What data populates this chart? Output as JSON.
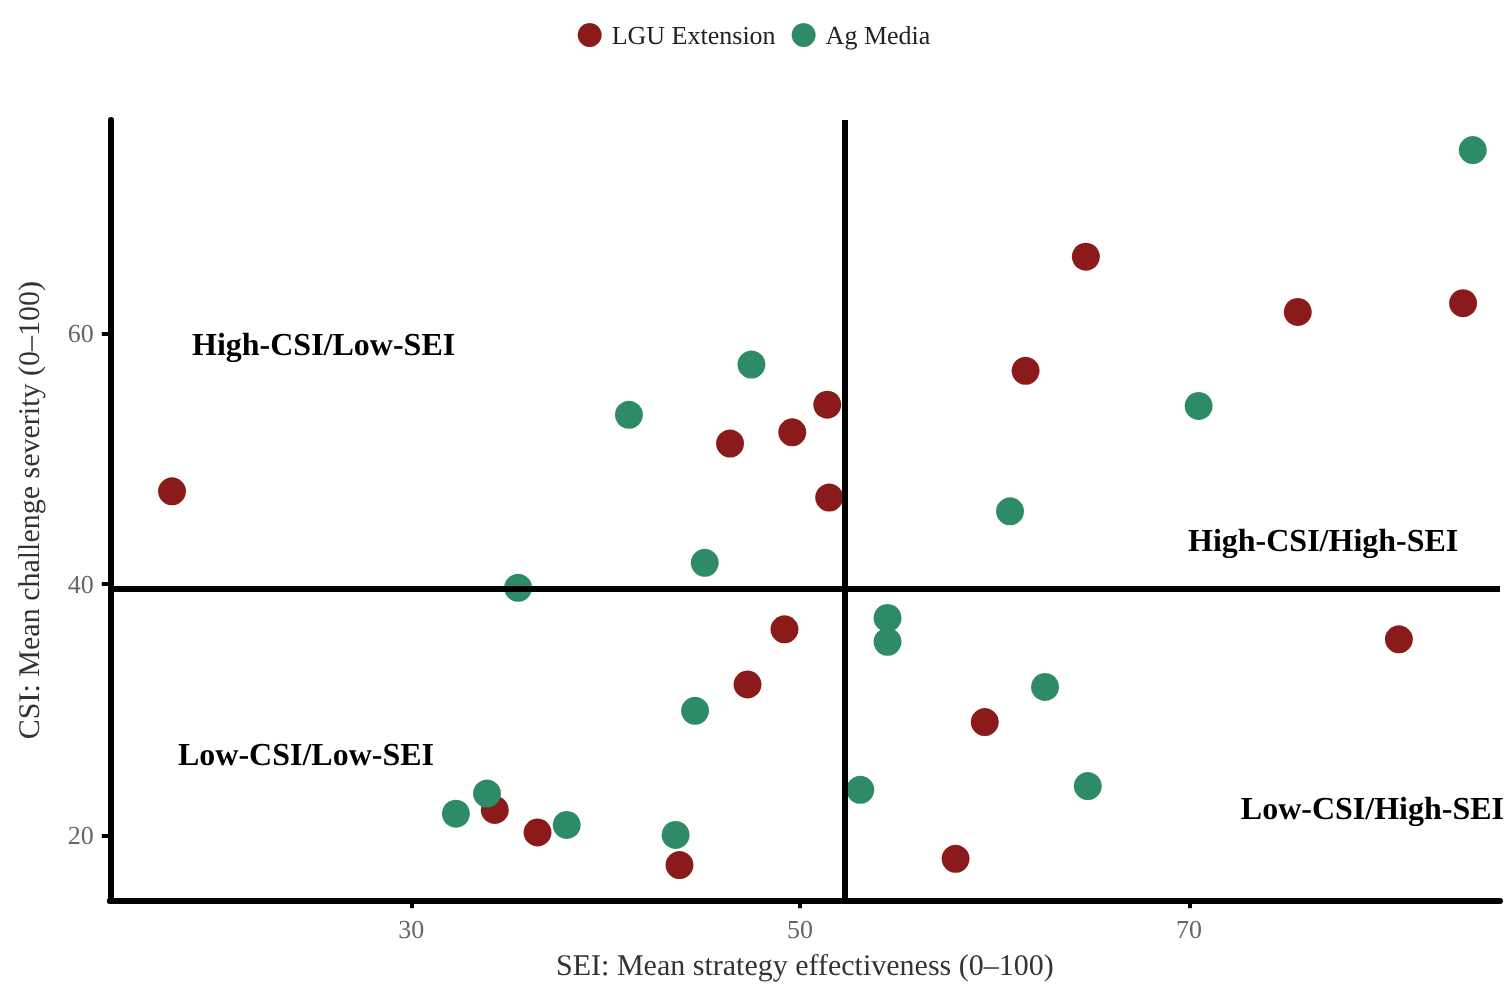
{
  "chart_data": {
    "type": "scatter",
    "xlabel": "SEI: Mean strategy effectiveness (0–100)",
    "ylabel": "CSI: Mean challenge severity (0–100)",
    "annotations": [
      "High-CSI/Low-SEI",
      "High-CSI/High-SEI",
      "Low-CSI/Low-SEI",
      "Low-CSI/High-SEI"
    ],
    "series": [
      {
        "name": "LGU Extension",
        "color": "#8b1a1a",
        "x": [
          17.7,
          46.4,
          49.6,
          51.4,
          51.5,
          64.7,
          61.6,
          75.6,
          84.1,
          80.8,
          49.2,
          47.3,
          59.5,
          58.0,
          34.3,
          36.5,
          43.8
        ],
        "values": [
          47.4,
          51.2,
          52.1,
          54.3,
          46.9,
          66.1,
          57.0,
          61.7,
          62.4,
          35.6,
          36.4,
          32.0,
          29.0,
          18.1,
          22.0,
          20.2,
          17.6
        ]
      },
      {
        "name": "Ag Media",
        "color": "#2e8b67",
        "x": [
          84.6,
          41.2,
          47.5,
          70.5,
          60.8,
          35.5,
          45.1,
          54.5,
          54.5,
          62.6,
          44.6,
          53.1,
          64.8,
          32.3,
          33.9,
          38.0,
          43.6
        ],
        "values": [
          74.6,
          53.5,
          57.5,
          54.2,
          45.8,
          39.7,
          41.7,
          37.3,
          35.4,
          31.8,
          29.9,
          23.6,
          23.9,
          21.7,
          23.3,
          20.8,
          20.0
        ]
      }
    ],
    "xlim": [
      14.5,
      86
    ],
    "ylim": [
      14.8,
      77
    ],
    "xticks": [
      30,
      50,
      70
    ],
    "yticks": [
      20,
      40,
      60
    ],
    "ref_lines": [
      {
        "axis": "x",
        "value": 52.3
      },
      {
        "axis": "y",
        "value": 39.7
      }
    ],
    "grid": false,
    "legend": "top",
    "marker": "circle"
  }
}
